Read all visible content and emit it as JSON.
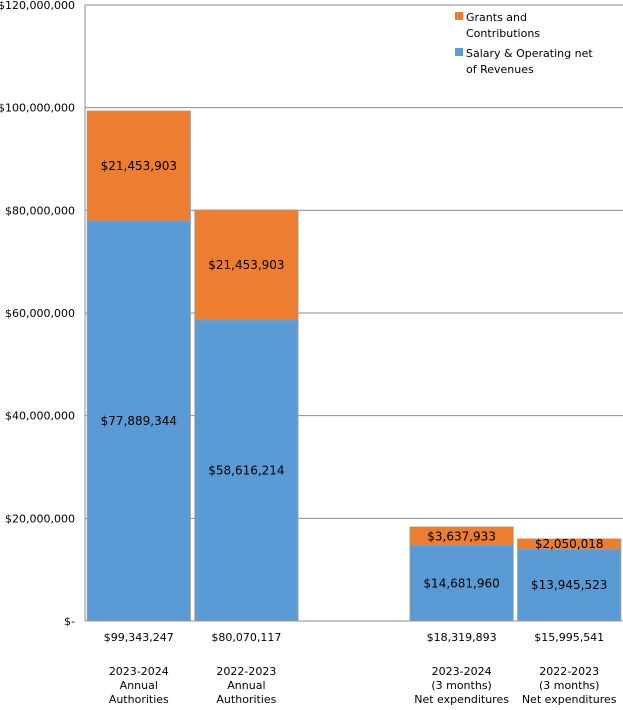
{
  "chart_data": {
    "type": "bar",
    "stacked": true,
    "ylim": [
      0,
      120000000
    ],
    "yticks": [
      "$-",
      "$20,000,000",
      "$40,000,000",
      "$60,000,000",
      "$80,000,000",
      "$100,000,000",
      "$120,000,000"
    ],
    "grid": true,
    "legend_position": "top-right",
    "categories": [
      {
        "total": "$99,343,247",
        "lines": [
          "2023-2024",
          "Annual",
          "Authorities"
        ]
      },
      {
        "total": "$80,070,117",
        "lines": [
          "2022-2023",
          "Annual",
          "Authorities"
        ]
      },
      {
        "total": "",
        "lines": []
      },
      {
        "total": "$18,319,893",
        "lines": [
          "2023-2024",
          "(3 months)",
          "Net expenditures"
        ]
      },
      {
        "total": "$15,995,541",
        "lines": [
          "2022-2023",
          "(3 months)",
          "Net expenditures"
        ]
      }
    ],
    "series": [
      {
        "name": "Salary & Operating net of Revenues",
        "legend_lines": [
          "Salary & Operating net",
          "of Revenues"
        ],
        "color": "#5b9bd5",
        "values": [
          77889344,
          58616214,
          null,
          14681960,
          13945523
        ],
        "labels": [
          "$77,889,344",
          "$58,616,214",
          "",
          "$14,681,960",
          "$13,945,523"
        ]
      },
      {
        "name": "Grants and Contributions",
        "legend_lines": [
          "Grants and",
          "Contributions"
        ],
        "color": "#ed7d31",
        "values": [
          21453903,
          21453903,
          null,
          3637933,
          2050018
        ],
        "labels": [
          "$21,453,903",
          "$21,453,903",
          "",
          "$3,637,933",
          "$2,050,018"
        ]
      }
    ]
  }
}
